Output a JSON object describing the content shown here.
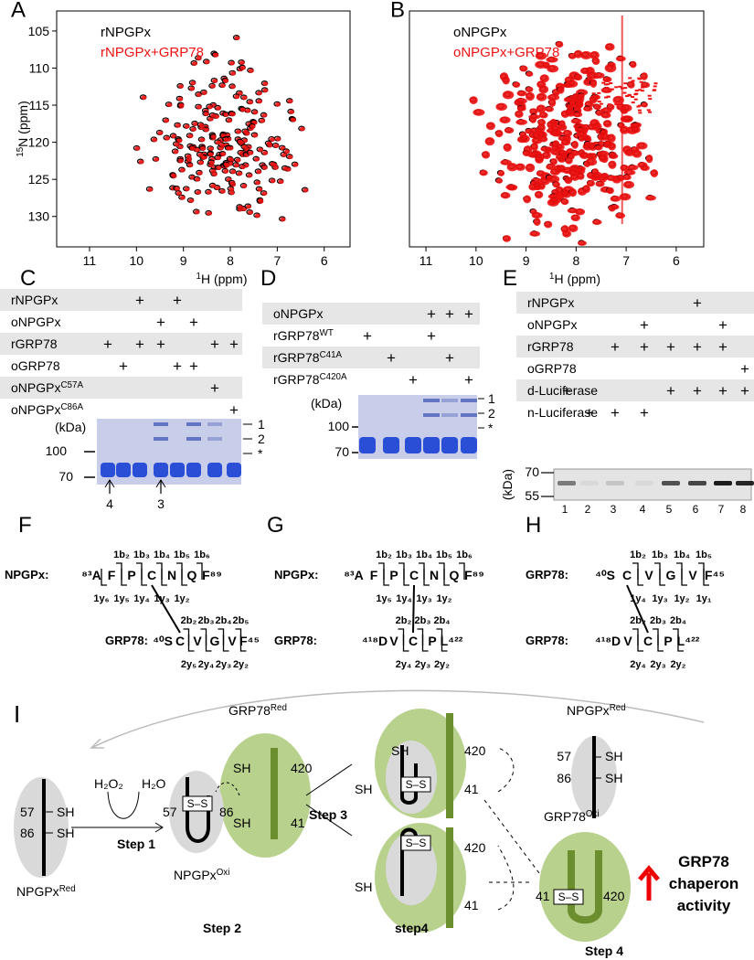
{
  "panels": {
    "a": {
      "label": "A",
      "legend": [
        {
          "name": "rNPGPx",
          "color": "#000000"
        },
        {
          "name": "rNPGPx+GRP78",
          "color": "#ee1111"
        }
      ],
      "y_label": {
        "sup": "15",
        "text": "N (ppm)"
      },
      "x_label": {
        "sup": "1",
        "text": "H (ppm)"
      },
      "xlim": [
        11.7,
        5.45
      ],
      "xticks": [
        11,
        10,
        9,
        8,
        7,
        6
      ],
      "ylim": [
        102.3,
        134.1
      ],
      "yticks": [
        105,
        110,
        115,
        120,
        125,
        130
      ]
    },
    "b": {
      "label": "B",
      "legend": [
        {
          "name": "oNPGPx",
          "color": "#000000"
        },
        {
          "name": "oNPGPx+GRP78",
          "color": "#ee1111"
        }
      ],
      "x_label": {
        "sup": "1",
        "text": "H (ppm)"
      },
      "xlim": [
        11.33,
        5.45
      ],
      "xticks": [
        11,
        10,
        9,
        8,
        7,
        6
      ],
      "ylim": [
        102.3,
        134.1
      ]
    },
    "c": {
      "label": "C",
      "rows": [
        {
          "name": {
            "text": "rNPGPx"
          },
          "marks": [
            null,
            null,
            "+",
            null,
            "+",
            null,
            null,
            null
          ]
        },
        {
          "name": {
            "text": "oNPGPx"
          },
          "marks": [
            null,
            null,
            null,
            "+",
            null,
            "+",
            null,
            null
          ]
        },
        {
          "name": {
            "text": "rGRP78"
          },
          "marks": [
            "+",
            null,
            "+",
            "+",
            null,
            null,
            "+",
            "+"
          ]
        },
        {
          "name": {
            "text": "oGRP78"
          },
          "marks": [
            null,
            "+",
            null,
            null,
            "+",
            "+",
            null,
            null
          ]
        },
        {
          "name": {
            "text": "oNPGPx",
            "sup": "C57A"
          },
          "marks": [
            null,
            null,
            null,
            null,
            null,
            null,
            "+",
            null
          ]
        },
        {
          "name": {
            "text": "oNPGPx",
            "sup": "C86A"
          },
          "marks": [
            null,
            null,
            null,
            null,
            null,
            null,
            null,
            "+"
          ]
        }
      ],
      "unit": "(kDa)",
      "markers": [
        "100",
        "70"
      ],
      "bands": [
        "1",
        "2",
        "*"
      ],
      "arrows": [
        "4",
        "3"
      ]
    },
    "d": {
      "label": "D",
      "rows": [
        {
          "name": {
            "text": "oNPGPx"
          },
          "marks": [
            null,
            null,
            null,
            "+",
            "+",
            "+"
          ]
        },
        {
          "name": {
            "text": "rGRP78",
            "sup": "WT"
          },
          "marks": [
            "+",
            null,
            null,
            "+",
            null,
            null
          ]
        },
        {
          "name": {
            "text": "rGRP78",
            "sup": "C41A"
          },
          "marks": [
            null,
            "+",
            null,
            null,
            "+",
            null
          ]
        },
        {
          "name": {
            "text": "rGRP78",
            "sup": "C420A"
          },
          "marks": [
            null,
            null,
            "+",
            null,
            null,
            "+"
          ]
        }
      ],
      "unit": "(kDa)",
      "markers": [
        "100",
        "70"
      ],
      "bands": [
        "1",
        "2",
        "*"
      ]
    },
    "e": {
      "label": "E",
      "rows": [
        {
          "name": {
            "text": "rNPGPx"
          },
          "marks": [
            null,
            null,
            null,
            null,
            null,
            "+",
            null,
            null
          ]
        },
        {
          "name": {
            "text": "oNPGPx"
          },
          "marks": [
            null,
            null,
            null,
            "+",
            null,
            null,
            "+",
            null
          ]
        },
        {
          "name": {
            "text": "rGRP78"
          },
          "marks": [
            null,
            null,
            "+",
            "+",
            "+",
            "+",
            "+",
            null
          ]
        },
        {
          "name": {
            "text": "oGRP78"
          },
          "marks": [
            null,
            null,
            null,
            null,
            null,
            null,
            null,
            "+"
          ]
        },
        {
          "name": {
            "text": "d-Luciferase"
          },
          "marks": [
            "+",
            null,
            null,
            null,
            "+",
            "+",
            "+",
            "+"
          ]
        },
        {
          "name": {
            "text": "n-Luciferase"
          },
          "marks": [
            null,
            "+",
            "+",
            "+",
            null,
            null,
            null,
            null
          ]
        }
      ],
      "unit": "(kDa)",
      "markers": [
        "70",
        "55"
      ],
      "lanes": [
        "1",
        "2",
        "3",
        "4",
        "5",
        "6",
        "7",
        "8"
      ]
    },
    "f": {
      "label": "F",
      "peptides": [
        {
          "name": "NPGPx:",
          "top": [
            "1b₂",
            "1b₃",
            "1b₄",
            "1b₅",
            "1b₆"
          ],
          "residues": [
            "⁸³A",
            "F",
            "P",
            "C",
            "N",
            "Q",
            "F⁸⁹"
          ],
          "bottom": [
            "1y₆",
            "1y₅",
            "1y₄",
            "1y₃",
            "1y₂"
          ]
        },
        {
          "name": "GRP78:",
          "top": [
            "2b₂",
            "2b₃",
            "2b₄",
            "2b₅"
          ],
          "residues": [
            "⁴⁰S",
            "C",
            "V",
            "G",
            "V",
            "F⁴⁵"
          ],
          "bottom": [
            "2y₅",
            "2y₄",
            "2y₃",
            "2y₂"
          ]
        }
      ]
    },
    "g": {
      "label": "G",
      "peptides": [
        {
          "name": "NPGPx:",
          "top": [
            "1b₂",
            "1b₃",
            "1b₄",
            "1b₅",
            "1b₆"
          ],
          "residues": [
            "⁸³A",
            "F",
            "P",
            "C",
            "N",
            "Q",
            "F⁸⁹"
          ],
          "bottom": [
            "1y₅",
            "1y₄",
            "1y₃",
            "1y₂"
          ]
        },
        {
          "name": "GRP78:",
          "top": [
            "2b₂",
            "2b₃",
            "2b₄"
          ],
          "residues": [
            "⁴¹⁸D",
            "V",
            "C",
            "P",
            "L⁴²²"
          ],
          "bottom": [
            "2y₄",
            "2y₃",
            "2y₂"
          ]
        }
      ]
    },
    "h": {
      "label": "H",
      "peptides": [
        {
          "name": "GRP78:",
          "top": [
            "1b₂",
            "1b₃",
            "1b₄",
            "1b₅"
          ],
          "residues": [
            "⁴⁰S",
            "C",
            "V",
            "G",
            "V",
            "F⁴⁵"
          ],
          "bottom": [
            "1y₄",
            "1y₃",
            "1y₂",
            "1y₁"
          ]
        },
        {
          "name": "GRP78:",
          "top": [
            "2b₂",
            "2b₃",
            "2b₄"
          ],
          "residues": [
            "⁴¹⁸D",
            "V",
            "C",
            "P",
            "L⁴²²"
          ],
          "bottom": [
            "2y₄",
            "2y₃",
            "2y₂"
          ]
        }
      ]
    },
    "i": {
      "labels": [
        "I",
        {
          "text": "GRP78",
          "sup": "Red"
        },
        {
          "text": "NPGPx",
          "sup": "Red"
        },
        "H₂O₂",
        "H₂O",
        "57",
        "SH",
        "86",
        "SH",
        "Step 1",
        {
          "text": "NPGPx",
          "sup": "Red"
        },
        "57",
        "86",
        "SH",
        "420",
        "SH",
        "41",
        {
          "text": "NPGPx",
          "sup": "Oxi"
        },
        "Step 2",
        "Step 3",
        "SH",
        "420",
        "SH",
        "41",
        "SH",
        "420",
        "41",
        "step4",
        "57",
        "SH",
        "86",
        "SH",
        {
          "text": "GRP78",
          "sup": "Oxi"
        },
        "41",
        "420",
        "Step 4",
        "GRP78",
        "chaperon",
        "activity",
        "S–S",
        "S–S",
        "S–S",
        "S–S"
      ]
    }
  }
}
